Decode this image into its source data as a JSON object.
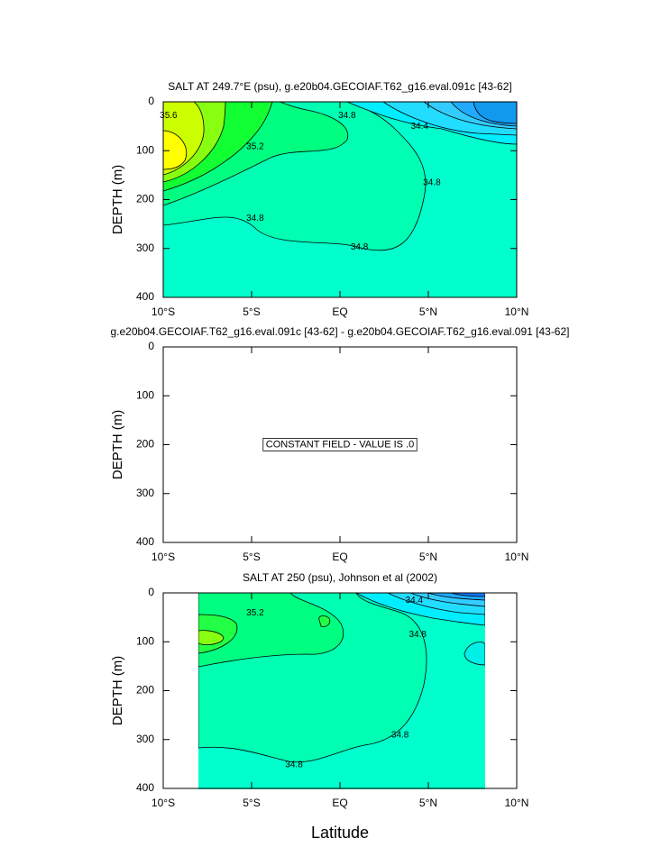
{
  "chart_data": [
    {
      "type": "contour",
      "title": "SALT AT 249.7°E (psu), g.e20b04.GECOIAF.T62_g16.eval.091c [43-62]",
      "ylabel": "DEPTH (m)",
      "xlim": [
        -10,
        10
      ],
      "xticks": [
        {
          "value": -10,
          "label": "10°S"
        },
        {
          "value": -5,
          "label": "5°S"
        },
        {
          "value": 0,
          "label": "EQ"
        },
        {
          "value": 5,
          "label": "5°N"
        },
        {
          "value": 10,
          "label": "10°N"
        }
      ],
      "ylim": [
        0,
        400
      ],
      "y_reversed": true,
      "yticks": [
        0,
        100,
        200,
        300,
        400
      ],
      "contour_labels": [
        {
          "value": 35.6,
          "x": -9.7,
          "y": 28
        },
        {
          "value": 35.2,
          "x": -4.8,
          "y": 92
        },
        {
          "value": 34.8,
          "x": 0.4,
          "y": 28
        },
        {
          "value": 34.4,
          "x": 4.5,
          "y": 50
        },
        {
          "value": 34.8,
          "x": 5.2,
          "y": 166
        },
        {
          "value": 34.8,
          "x": -4.8,
          "y": 238
        },
        {
          "value": 34.8,
          "x": 1.1,
          "y": 297
        }
      ]
    },
    {
      "type": "contour",
      "title": "g.e20b04.GECOIAF.T62_g16.eval.091c [43-62] - g.e20b04.GECOIAF.T62_g16.eval.091 [43-62]",
      "ylabel": "DEPTH (m)",
      "xlim": [
        -10,
        10
      ],
      "xticks": [
        {
          "value": -10,
          "label": "10°S"
        },
        {
          "value": -5,
          "label": "5°S"
        },
        {
          "value": 0,
          "label": "EQ"
        },
        {
          "value": 5,
          "label": "5°N"
        },
        {
          "value": 10,
          "label": "10°N"
        }
      ],
      "ylim": [
        0,
        400
      ],
      "y_reversed": true,
      "yticks": [
        0,
        100,
        200,
        300,
        400
      ],
      "annotation": "CONSTANT FIELD - VALUE IS .0"
    },
    {
      "type": "contour",
      "title": "SALT AT 250 (psu), Johnson et al (2002)",
      "ylabel": "DEPTH (m)",
      "xlabel": "Latitude",
      "xlim": [
        -10,
        10
      ],
      "xticks": [
        {
          "value": -10,
          "label": "10°S"
        },
        {
          "value": -5,
          "label": "5°S"
        },
        {
          "value": 0,
          "label": "EQ"
        },
        {
          "value": 5,
          "label": "5°N"
        },
        {
          "value": 10,
          "label": "10°N"
        }
      ],
      "ylim": [
        0,
        400
      ],
      "y_reversed": true,
      "yticks": [
        0,
        100,
        200,
        300,
        400
      ],
      "contour_labels": [
        {
          "value": 35.2,
          "x": -4.8,
          "y": 41
        },
        {
          "value": 34.4,
          "x": 4.2,
          "y": 15
        },
        {
          "value": 34.8,
          "x": 4.4,
          "y": 85
        },
        {
          "value": 34.8,
          "x": 3.4,
          "y": 291
        },
        {
          "value": 34.8,
          "x": -2.6,
          "y": 352
        }
      ]
    }
  ]
}
